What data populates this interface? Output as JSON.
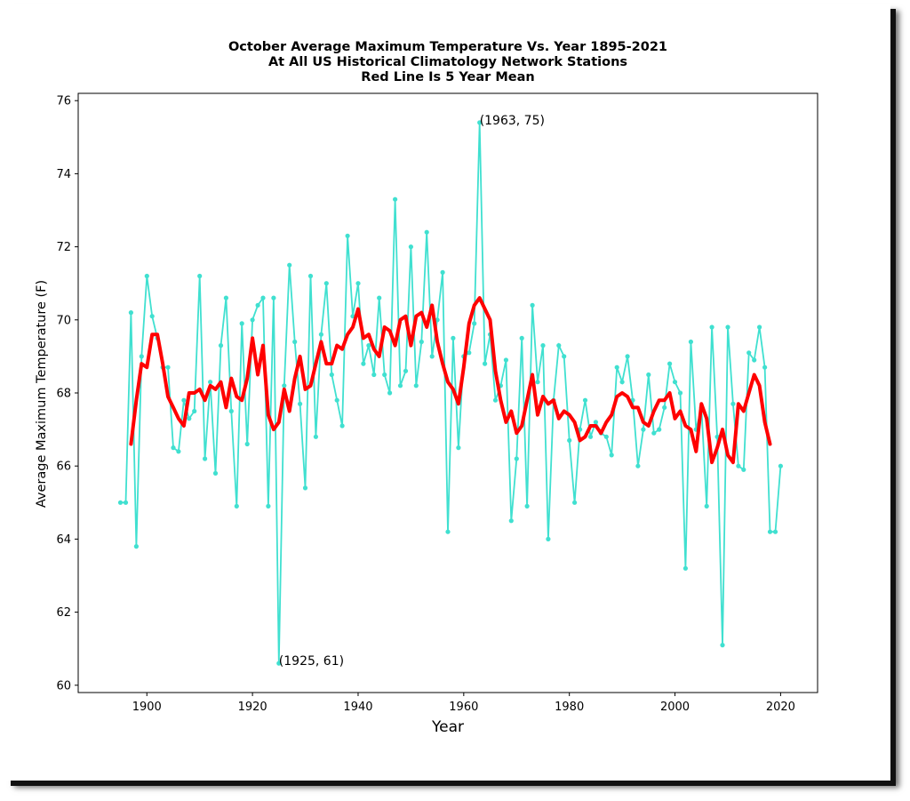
{
  "chart_data": {
    "type": "line",
    "title_lines": [
      "October Average Maximum Temperature Vs. Year 1895-2021",
      "At All US Historical Climatology Network Stations",
      "Red Line Is 5 Year Mean"
    ],
    "xlabel": "Year",
    "ylabel": "Average Maximum Temperature (F)",
    "xlim": [
      1887,
      2027
    ],
    "ylim": [
      59.8,
      76.2
    ],
    "xticks": [
      1900,
      1920,
      1940,
      1960,
      1980,
      2000,
      2020
    ],
    "yticks": [
      60,
      62,
      64,
      66,
      68,
      70,
      72,
      74,
      76
    ],
    "grid": false,
    "colors": {
      "annual": "#40e0d0",
      "mean": "#ff0000"
    },
    "series": [
      {
        "key": "annual",
        "x": [
          1895,
          1896,
          1897,
          1898,
          1899,
          1900,
          1901,
          1902,
          1903,
          1904,
          1905,
          1906,
          1907,
          1908,
          1909,
          1910,
          1911,
          1912,
          1913,
          1914,
          1915,
          1916,
          1917,
          1918,
          1919,
          1920,
          1921,
          1922,
          1923,
          1924,
          1925,
          1926,
          1927,
          1928,
          1929,
          1930,
          1931,
          1932,
          1933,
          1934,
          1935,
          1936,
          1937,
          1938,
          1939,
          1940,
          1941,
          1942,
          1943,
          1944,
          1945,
          1946,
          1947,
          1948,
          1949,
          1950,
          1951,
          1952,
          1953,
          1954,
          1955,
          1956,
          1957,
          1958,
          1959,
          1960,
          1961,
          1962,
          1963,
          1964,
          1965,
          1966,
          1967,
          1968,
          1969,
          1970,
          1971,
          1972,
          1973,
          1974,
          1975,
          1976,
          1977,
          1978,
          1979,
          1980,
          1981,
          1982,
          1983,
          1984,
          1985,
          1986,
          1987,
          1988,
          1989,
          1990,
          1991,
          1992,
          1993,
          1994,
          1995,
          1996,
          1997,
          1998,
          1999,
          2000,
          2001,
          2002,
          2003,
          2004,
          2005,
          2006,
          2007,
          2008,
          2009,
          2010,
          2011,
          2012,
          2013,
          2014,
          2015,
          2016,
          2017,
          2018,
          2019,
          2020
        ],
        "values": [
          65.0,
          65.0,
          70.2,
          63.8,
          69.0,
          71.2,
          70.1,
          69.5,
          68.7,
          68.7,
          66.5,
          66.4,
          67.8,
          67.3,
          67.5,
          71.2,
          66.2,
          68.3,
          65.8,
          69.3,
          70.6,
          67.5,
          64.9,
          69.9,
          66.6,
          70.0,
          70.4,
          70.6,
          64.9,
          70.6,
          60.6,
          68.2,
          71.5,
          69.4,
          67.7,
          65.4,
          71.2,
          66.8,
          69.6,
          71.0,
          68.5,
          67.8,
          67.1,
          72.3,
          70.1,
          71.0,
          68.8,
          69.3,
          68.5,
          70.6,
          68.5,
          68.0,
          73.3,
          68.2,
          68.6,
          72.0,
          68.2,
          69.4,
          72.4,
          69.0,
          70.0,
          71.3,
          64.2,
          69.5,
          66.5,
          69.0,
          69.1,
          69.9,
          75.4,
          68.8,
          69.6,
          67.8,
          68.2,
          68.9,
          64.5,
          66.2,
          69.5,
          64.9,
          70.4,
          68.3,
          69.3,
          64.0,
          67.8,
          69.3,
          69.0,
          66.7,
          65.0,
          67.0,
          67.8,
          66.8,
          67.2,
          66.9,
          66.8,
          66.3,
          68.7,
          68.3,
          69.0,
          67.8,
          66.0,
          67.0,
          68.5,
          66.9,
          67.0,
          67.6,
          68.8,
          68.3,
          68.0,
          63.2,
          69.4,
          67.0,
          67.6,
          64.9,
          69.8,
          66.8,
          61.1,
          69.8,
          67.7,
          66.0,
          65.9,
          69.1,
          68.9,
          69.8,
          68.7,
          64.2,
          64.2,
          66.0
        ]
      },
      {
        "key": "mean",
        "x": [
          1897,
          1898,
          1899,
          1900,
          1901,
          1902,
          1903,
          1904,
          1905,
          1906,
          1907,
          1908,
          1909,
          1910,
          1911,
          1912,
          1913,
          1914,
          1915,
          1916,
          1917,
          1918,
          1919,
          1920,
          1921,
          1922,
          1923,
          1924,
          1925,
          1926,
          1927,
          1928,
          1929,
          1930,
          1931,
          1932,
          1933,
          1934,
          1935,
          1936,
          1937,
          1938,
          1939,
          1940,
          1941,
          1942,
          1943,
          1944,
          1945,
          1946,
          1947,
          1948,
          1949,
          1950,
          1951,
          1952,
          1953,
          1954,
          1955,
          1956,
          1957,
          1958,
          1959,
          1960,
          1961,
          1962,
          1963,
          1964,
          1965,
          1966,
          1967,
          1968,
          1969,
          1970,
          1971,
          1972,
          1973,
          1974,
          1975,
          1976,
          1977,
          1978,
          1979,
          1980,
          1981,
          1982,
          1983,
          1984,
          1985,
          1986,
          1987,
          1988,
          1989,
          1990,
          1991,
          1992,
          1993,
          1994,
          1995,
          1996,
          1997,
          1998,
          1999,
          2000,
          2001,
          2002,
          2003,
          2004,
          2005,
          2006,
          2007,
          2008,
          2009,
          2010,
          2011,
          2012,
          2013,
          2014,
          2015,
          2016,
          2017,
          2018
        ],
        "values": [
          66.6,
          67.8,
          68.8,
          68.7,
          69.6,
          69.6,
          68.8,
          67.9,
          67.6,
          67.3,
          67.1,
          68.0,
          68.0,
          68.1,
          67.8,
          68.2,
          68.1,
          68.3,
          67.6,
          68.4,
          67.9,
          67.8,
          68.4,
          69.5,
          68.5,
          69.3,
          67.4,
          67.0,
          67.2,
          68.1,
          67.5,
          68.4,
          69.0,
          68.1,
          68.2,
          68.8,
          69.4,
          68.8,
          68.8,
          69.3,
          69.2,
          69.6,
          69.8,
          70.3,
          69.5,
          69.6,
          69.2,
          69.0,
          69.8,
          69.7,
          69.3,
          70.0,
          70.1,
          69.3,
          70.1,
          70.2,
          69.8,
          70.4,
          69.4,
          68.8,
          68.3,
          68.1,
          67.7,
          68.7,
          69.9,
          70.4,
          70.6,
          70.3,
          70.0,
          68.6,
          67.8,
          67.2,
          67.5,
          66.9,
          67.1,
          67.8,
          68.5,
          67.4,
          67.9,
          67.7,
          67.8,
          67.3,
          67.5,
          67.4,
          67.2,
          66.7,
          66.8,
          67.1,
          67.1,
          66.9,
          67.2,
          67.4,
          67.9,
          68.0,
          67.9,
          67.6,
          67.6,
          67.2,
          67.1,
          67.5,
          67.8,
          67.8,
          68.0,
          67.3,
          67.5,
          67.1,
          67.0,
          66.4,
          67.7,
          67.3,
          66.1,
          66.5,
          67.0,
          66.3,
          66.1,
          67.7,
          67.5,
          68.0,
          68.5,
          68.2,
          67.2,
          66.6
        ]
      }
    ],
    "annotations": [
      {
        "label": "(1963, 75)",
        "x": 1963,
        "y": 75.4
      },
      {
        "label": "(1925, 61)",
        "x": 1925,
        "y": 60.6
      }
    ]
  }
}
